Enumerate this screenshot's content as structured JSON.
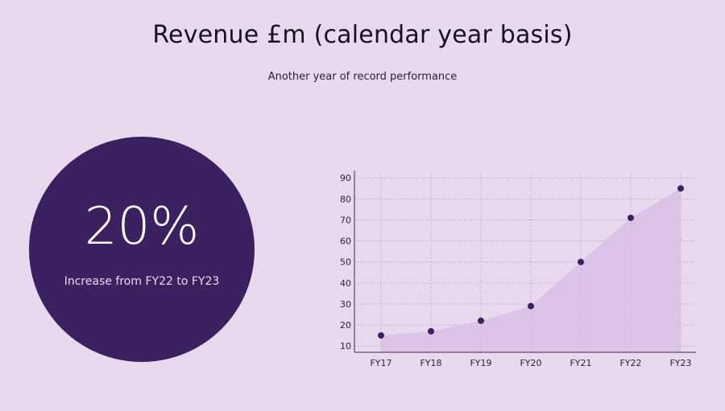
{
  "header": {
    "title": "Revenue £m (calendar year basis)",
    "subtitle": "Another year of record performance"
  },
  "highlight": {
    "value": "20%",
    "caption": "Increase from FY22 to FY23"
  },
  "colors": {
    "background": "#e9d9ee",
    "circle": "#3b2160",
    "area_fill": "#d9bfe6",
    "point": "#3b2160",
    "grid": "#b9a8c4"
  },
  "chart_data": {
    "type": "area",
    "categories": [
      "FY17",
      "FY18",
      "FY19",
      "FY20",
      "FY21",
      "FY22",
      "FY23"
    ],
    "series": [
      {
        "values": [
          15,
          17,
          22,
          29,
          50,
          71,
          85
        ]
      }
    ],
    "yticks": [
      10,
      20,
      30,
      40,
      50,
      60,
      70,
      80,
      90
    ],
    "ylim": [
      7,
      92
    ],
    "grid": true,
    "markers": true
  }
}
